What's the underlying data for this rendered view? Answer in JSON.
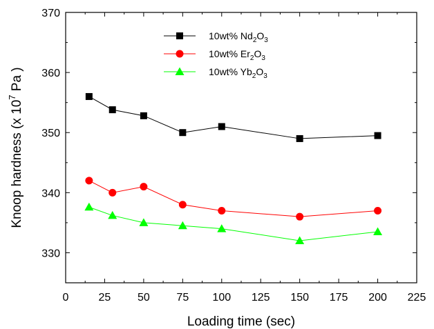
{
  "chart_data": {
    "type": "line",
    "xlabel": "Loading time (sec)",
    "ylabel": {
      "pre": "Knoop hardness (x 10",
      "exp": "7",
      "post": " Pa )"
    },
    "xlim": [
      0,
      225
    ],
    "ylim": [
      325,
      370
    ],
    "x_ticks": [
      0,
      25,
      50,
      75,
      100,
      125,
      150,
      175,
      200,
      225
    ],
    "y_ticks": [
      330,
      340,
      350,
      360,
      370
    ],
    "x_tick_labels": [
      "0",
      "25",
      "50",
      "75",
      "100",
      "125",
      "150",
      "175",
      "200",
      "225"
    ],
    "y_tick_labels": [
      "330",
      "340",
      "350",
      "360",
      "370"
    ],
    "grid": false,
    "legend_position": "top-center",
    "x": [
      15,
      30,
      50,
      75,
      100,
      150,
      200
    ],
    "series": [
      {
        "name": "10wt% Nd2O3",
        "legend": {
          "base": "10wt% Nd",
          "sub1": "2",
          "mid": "O",
          "sub2": "3"
        },
        "marker": "square",
        "color": "#000000",
        "values": [
          356.0,
          353.8,
          352.8,
          350.0,
          351.0,
          349.0,
          349.5
        ]
      },
      {
        "name": "10wt% Er2O3",
        "legend": {
          "base": "10wt% Er",
          "sub1": "2",
          "mid": "O",
          "sub2": "3"
        },
        "marker": "circle",
        "color": "#ff0000",
        "values": [
          342.0,
          340.0,
          341.0,
          338.0,
          337.0,
          336.0,
          337.0
        ]
      },
      {
        "name": "10wt% Yb2O3",
        "legend": {
          "base": "10wt% Yb",
          "sub1": "2",
          "mid": "O",
          "sub2": "3"
        },
        "marker": "triangle",
        "color": "#00ff00",
        "values": [
          337.6,
          336.2,
          335.0,
          334.5,
          334.0,
          332.0,
          333.5
        ]
      }
    ]
  }
}
